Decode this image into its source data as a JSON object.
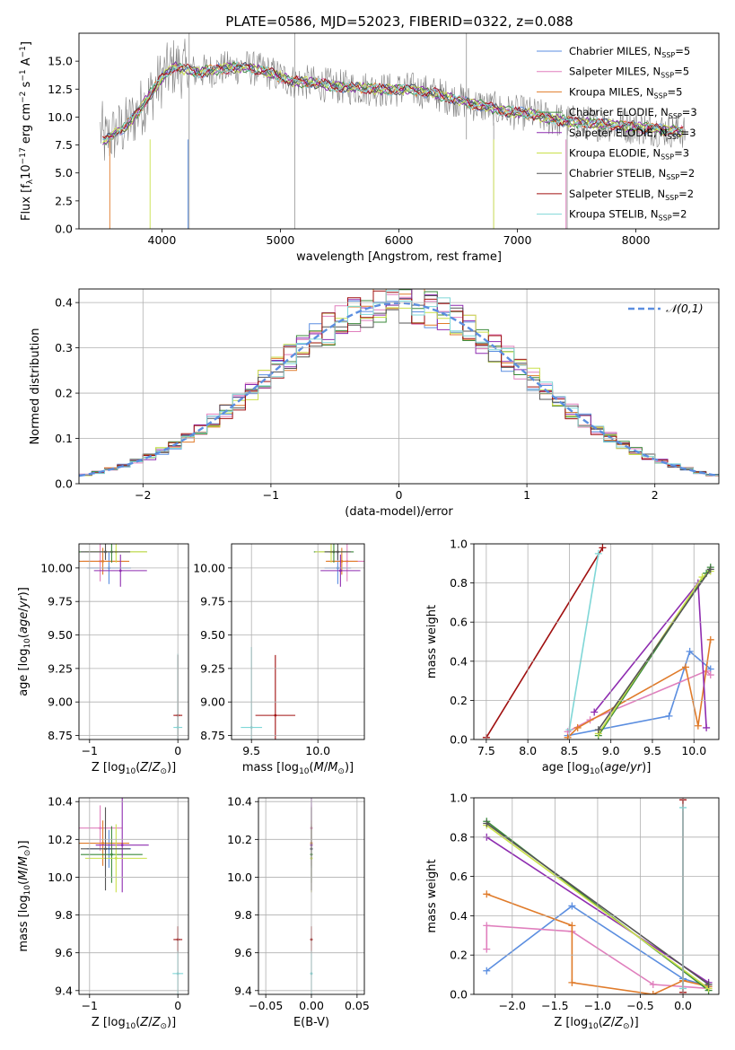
{
  "figure": {
    "title": "PLATE=0586, MJD=52023, FIBERID=0322, z=0.088"
  },
  "colors": {
    "Chabrier MILES": "#5b8ee0",
    "Salpeter MILES": "#e07fbd",
    "Kroupa MILES": "#e07b2a",
    "Chabrier ELODIE": "#3b8a3b",
    "Salpeter ELODIE": "#8e2cb0",
    "Kroupa ELODIE": "#c9e04a",
    "Chabrier STELIB": "#555555",
    "Salpeter STELIB": "#a01010",
    "Kroupa STELIB": "#7fd7d7",
    "data": "#808080",
    "normal": "#5b8ee0"
  },
  "chart_data": [
    {
      "id": "spectrum",
      "type": "line",
      "title": "PLATE=0586, MJD=52023, FIBERID=0322, z=0.088",
      "xlabel": "wavelength [Angstrom, rest frame]",
      "ylabel": "Flux [f_λ 10^-17 erg cm^-2 s^-1 A^-1]",
      "xlim": [
        3300,
        8700
      ],
      "ylim": [
        0,
        17.5
      ],
      "xticks": [
        4000,
        5000,
        6000,
        7000,
        8000
      ],
      "yticks": [
        0.0,
        2.5,
        5.0,
        7.5,
        10.0,
        12.5,
        15.0
      ],
      "grid": false,
      "legend_position": "top-right",
      "legend": [
        "Chabrier MILES, N_SSP=5",
        "Salpeter MILES, N_SSP=5",
        "Kroupa MILES, N_SSP=5",
        "Chabrier ELODIE, N_SSP=3",
        "Salpeter ELODIE, N_SSP=3",
        "Kroupa ELODIE, N_SSP=3",
        "Chabrier STELIB, N_SSP=2",
        "Salpeter STELIB, N_SSP=2",
        "Kroupa STELIB, N_SSP=2"
      ],
      "model_curve": {
        "x": [
          3500,
          3600,
          3700,
          3800,
          3900,
          4000,
          4100,
          4300,
          4500,
          4700,
          4900,
          5100,
          5300,
          5500,
          5700,
          5900,
          6100,
          6300,
          6500,
          6700,
          6900,
          7100,
          7300,
          7500,
          7700,
          7900,
          8100,
          8300,
          8400
        ],
        "y": [
          7.8,
          8.5,
          9.2,
          10.5,
          12.0,
          13.5,
          14.5,
          14.0,
          14.3,
          14.5,
          14.0,
          13.2,
          13.0,
          12.7,
          12.6,
          12.4,
          12.5,
          12.1,
          11.5,
          11.0,
          10.5,
          10.3,
          9.8,
          9.5,
          9.4,
          9.2,
          9.0,
          8.8,
          8.7
        ]
      }
    },
    {
      "id": "residuals",
      "type": "line",
      "xlabel": "(data-model)/error",
      "ylabel": "Normed distribution",
      "xlim": [
        -2.5,
        2.5
      ],
      "ylim": [
        0,
        0.43
      ],
      "xticks": [
        -2,
        -1,
        0,
        1,
        2
      ],
      "yticks": [
        0.0,
        0.1,
        0.2,
        0.3,
        0.4
      ],
      "grid": true,
      "legend_position": "top-right",
      "legend": [
        "𝒩(0,1)"
      ]
    },
    {
      "id": "age-vs-Z",
      "type": "scatter",
      "xlabel": "Z [log10(Z/Z⊙)]",
      "ylabel": "age  [log10(age/yr)]",
      "xlim": [
        -1.12,
        0.12
      ],
      "ylim": [
        8.72,
        10.18
      ],
      "xticks": [
        -1,
        0
      ],
      "yticks": [
        8.75,
        9.0,
        9.25,
        9.5,
        9.75,
        10.0
      ],
      "grid": true,
      "points": [
        {
          "model": "Chabrier MILES",
          "x": -0.78,
          "y": 10.0,
          "xerr": 0.25,
          "yerr": 0.12
        },
        {
          "model": "Salpeter MILES",
          "x": -0.88,
          "y": 10.05,
          "xerr": 0.2,
          "yerr": 0.15
        },
        {
          "model": "Kroupa MILES",
          "x": -0.85,
          "y": 10.05,
          "xerr": 0.3,
          "yerr": 0.1
        },
        {
          "model": "Chabrier ELODIE",
          "x": -0.75,
          "y": 10.12,
          "xerr": 0.4,
          "yerr": 0.08
        },
        {
          "model": "Salpeter ELODIE",
          "x": -0.65,
          "y": 9.98,
          "xerr": 0.3,
          "yerr": 0.12
        },
        {
          "model": "Kroupa ELODIE",
          "x": -0.7,
          "y": 10.12,
          "xerr": 0.35,
          "yerr": 0.08
        },
        {
          "model": "Chabrier STELIB",
          "x": -0.82,
          "y": 10.12,
          "xerr": 0.28,
          "yerr": 0.06
        },
        {
          "model": "Salpeter STELIB",
          "x": 0.0,
          "y": 8.9,
          "xerr": 0.05,
          "yerr": 0.45
        },
        {
          "model": "Kroupa STELIB",
          "x": 0.0,
          "y": 8.81,
          "xerr": 0.05,
          "yerr": 0.55
        }
      ]
    },
    {
      "id": "age-vs-mass",
      "type": "scatter",
      "xlabel": "mass [log10(M/M⊙)]",
      "ylabel": "",
      "xlim": [
        9.35,
        10.35
      ],
      "ylim": [
        8.72,
        10.18
      ],
      "xticks": [
        9.5,
        10.0
      ],
      "yticks": [
        8.75,
        9.0,
        9.25,
        9.5,
        9.75,
        10.0
      ],
      "grid": true,
      "points": [
        {
          "model": "Chabrier MILES",
          "x": 10.15,
          "y": 10.0,
          "xerr": 0.1,
          "yerr": 0.12
        },
        {
          "model": "Salpeter MILES",
          "x": 10.22,
          "y": 10.05,
          "xerr": 0.15,
          "yerr": 0.15
        },
        {
          "model": "Kroupa MILES",
          "x": 10.18,
          "y": 10.05,
          "xerr": 0.12,
          "yerr": 0.1
        },
        {
          "model": "Chabrier ELODIE",
          "x": 10.12,
          "y": 10.12,
          "xerr": 0.15,
          "yerr": 0.08
        },
        {
          "model": "Salpeter ELODIE",
          "x": 10.17,
          "y": 9.98,
          "xerr": 0.15,
          "yerr": 0.12
        },
        {
          "model": "Kroupa ELODIE",
          "x": 10.1,
          "y": 10.12,
          "xerr": 0.12,
          "yerr": 0.08
        },
        {
          "model": "Chabrier STELIB",
          "x": 10.15,
          "y": 10.12,
          "xerr": 0.1,
          "yerr": 0.06
        },
        {
          "model": "Salpeter STELIB",
          "x": 9.68,
          "y": 8.9,
          "xerr": 0.15,
          "yerr": 0.45
        },
        {
          "model": "Kroupa STELIB",
          "x": 9.5,
          "y": 8.81,
          "xerr": 0.08,
          "yerr": 0.6
        }
      ]
    },
    {
      "id": "mass-weight-vs-age",
      "type": "line",
      "xlabel": "age  [log10(age/yr)]",
      "ylabel": "mass weight",
      "xlim": [
        7.35,
        10.3
      ],
      "ylim": [
        0,
        1.0
      ],
      "xticks": [
        7.5,
        8.0,
        8.5,
        9.0,
        9.5,
        10.0
      ],
      "yticks": [
        0.0,
        0.2,
        0.4,
        0.6,
        0.8,
        1.0
      ],
      "grid": true,
      "series": [
        {
          "model": "Chabrier MILES",
          "x": [
            8.48,
            9.7,
            9.95,
            10.2
          ],
          "y": [
            0.02,
            0.12,
            0.45,
            0.36
          ]
        },
        {
          "model": "Salpeter MILES",
          "x": [
            8.48,
            8.75,
            10.15,
            10.2
          ],
          "y": [
            0.04,
            0.1,
            0.35,
            0.33
          ]
        },
        {
          "model": "Kroupa MILES",
          "x": [
            8.48,
            8.6,
            9.9,
            10.05,
            10.2
          ],
          "y": [
            0.01,
            0.06,
            0.37,
            0.07,
            0.51
          ]
        },
        {
          "model": "Chabrier ELODIE",
          "x": [
            8.85,
            10.15,
            10.2
          ],
          "y": [
            0.02,
            0.85,
            0.88
          ]
        },
        {
          "model": "Salpeter ELODIE",
          "x": [
            8.8,
            10.05,
            10.15
          ],
          "y": [
            0.14,
            0.8,
            0.06
          ]
        },
        {
          "model": "Kroupa ELODIE",
          "x": [
            8.85,
            10.1,
            10.2
          ],
          "y": [
            0.03,
            0.83,
            0.86
          ]
        },
        {
          "model": "Chabrier STELIB",
          "x": [
            8.85,
            10.2
          ],
          "y": [
            0.05,
            0.87
          ]
        },
        {
          "model": "Salpeter STELIB",
          "x": [
            7.5,
            8.9
          ],
          "y": [
            0.01,
            0.98
          ]
        },
        {
          "model": "Kroupa STELIB",
          "x": [
            8.5,
            8.85
          ],
          "y": [
            0.05,
            0.95
          ]
        }
      ]
    },
    {
      "id": "mass-vs-Z",
      "type": "scatter",
      "xlabel": "Z [log10(Z/Z⊙)]",
      "ylabel": "mass [log10(M/M⊙)]",
      "xlim": [
        -1.12,
        0.12
      ],
      "ylim": [
        9.38,
        10.42
      ],
      "xticks": [
        -1,
        0
      ],
      "yticks": [
        9.4,
        9.6,
        9.8,
        10.0,
        10.2,
        10.4
      ],
      "grid": true,
      "points": [
        {
          "model": "Chabrier MILES",
          "x": -0.78,
          "y": 10.15,
          "xerr": 0.25,
          "yerr": 0.1
        },
        {
          "model": "Salpeter MILES",
          "x": -0.88,
          "y": 10.26,
          "xerr": 0.25,
          "yerr": 0.12
        },
        {
          "model": "Kroupa MILES",
          "x": -0.85,
          "y": 10.18,
          "xerr": 0.3,
          "yerr": 0.12
        },
        {
          "model": "Chabrier ELODIE",
          "x": -0.75,
          "y": 10.12,
          "xerr": 0.35,
          "yerr": 0.15
        },
        {
          "model": "Salpeter ELODIE",
          "x": -0.63,
          "y": 10.17,
          "xerr": 0.3,
          "yerr": 0.25
        },
        {
          "model": "Kroupa ELODIE",
          "x": -0.7,
          "y": 10.1,
          "xerr": 0.35,
          "yerr": 0.18
        },
        {
          "model": "Chabrier STELIB",
          "x": -0.82,
          "y": 10.15,
          "xerr": 0.28,
          "yerr": 0.22
        },
        {
          "model": "Salpeter STELIB",
          "x": 0.0,
          "y": 9.67,
          "xerr": 0.05,
          "yerr": 0.07
        },
        {
          "model": "Kroupa STELIB",
          "x": 0.0,
          "y": 9.49,
          "xerr": 0.06,
          "yerr": 0.12
        }
      ]
    },
    {
      "id": "mass-vs-EBV",
      "type": "scatter",
      "xlabel": "E(B-V)",
      "ylabel": "",
      "xlim": [
        -0.058,
        0.058
      ],
      "ylim": [
        9.38,
        10.42
      ],
      "xticks": [
        -0.05,
        0.0,
        0.05
      ],
      "yticks": [
        9.4,
        9.6,
        9.8,
        10.0,
        10.2,
        10.4
      ],
      "grid": true,
      "points": [
        {
          "model": "Chabrier MILES",
          "x": 0.0,
          "y": 10.15,
          "xerr": 0.0,
          "yerr": 0.1
        },
        {
          "model": "Salpeter MILES",
          "x": 0.0,
          "y": 10.26,
          "xerr": 0.0,
          "yerr": 0.12
        },
        {
          "model": "Kroupa MILES",
          "x": 0.0,
          "y": 10.18,
          "xerr": 0.0,
          "yerr": 0.12
        },
        {
          "model": "Chabrier ELODIE",
          "x": 0.0,
          "y": 10.12,
          "xerr": 0.0,
          "yerr": 0.15
        },
        {
          "model": "Salpeter ELODIE",
          "x": 0.0,
          "y": 10.17,
          "xerr": 0.0,
          "yerr": 0.25
        },
        {
          "model": "Kroupa ELODIE",
          "x": 0.0,
          "y": 10.1,
          "xerr": 0.0,
          "yerr": 0.18
        },
        {
          "model": "Chabrier STELIB",
          "x": 0.0,
          "y": 10.15,
          "xerr": 0.0,
          "yerr": 0.22
        },
        {
          "model": "Salpeter STELIB",
          "x": 0.0,
          "y": 9.67,
          "xerr": 0.0,
          "yerr": 0.07
        },
        {
          "model": "Kroupa STELIB",
          "x": 0.0,
          "y": 9.49,
          "xerr": 0.0,
          "yerr": 0.12
        }
      ]
    },
    {
      "id": "mass-weight-vs-Z",
      "type": "line",
      "xlabel": "Z [log10(Z/Z⊙)]",
      "ylabel": "mass weight",
      "xlim": [
        -2.45,
        0.42
      ],
      "ylim": [
        0,
        1.0
      ],
      "xticks": [
        -2.0,
        -1.5,
        -1.0,
        -0.5,
        0.0
      ],
      "yticks": [
        0.0,
        0.2,
        0.4,
        0.6,
        0.8,
        1.0
      ],
      "grid": true,
      "series": [
        {
          "model": "Chabrier MILES",
          "x": [
            -2.3,
            -1.3,
            0.0,
            0.3
          ],
          "y": [
            0.12,
            0.45,
            0.08,
            0.04
          ]
        },
        {
          "model": "Salpeter MILES",
          "x": [
            -2.3,
            -2.3,
            -1.3,
            -0.35,
            0.3
          ],
          "y": [
            0.23,
            0.35,
            0.32,
            0.05,
            0.03
          ]
        },
        {
          "model": "Kroupa MILES",
          "x": [
            -2.3,
            -1.3,
            -1.3,
            -0.35,
            0.0,
            0.3
          ],
          "y": [
            0.51,
            0.35,
            0.06,
            0.0,
            0.07,
            0.04
          ]
        },
        {
          "model": "Chabrier ELODIE",
          "x": [
            -2.3,
            0.3
          ],
          "y": [
            0.88,
            0.02
          ]
        },
        {
          "model": "Salpeter ELODIE",
          "x": [
            -2.3,
            0.3
          ],
          "y": [
            0.8,
            0.06
          ]
        },
        {
          "model": "Kroupa ELODIE",
          "x": [
            -2.3,
            0.3
          ],
          "y": [
            0.86,
            0.03
          ]
        },
        {
          "model": "Chabrier STELIB",
          "x": [
            -2.3,
            0.3
          ],
          "y": [
            0.87,
            0.05
          ]
        },
        {
          "model": "Salpeter STELIB",
          "x": [
            0.0,
            0.0
          ],
          "y": [
            0.01,
            0.99
          ]
        },
        {
          "model": "Kroupa STELIB",
          "x": [
            0.0,
            0.0
          ],
          "y": [
            0.03,
            0.95
          ]
        }
      ]
    }
  ]
}
